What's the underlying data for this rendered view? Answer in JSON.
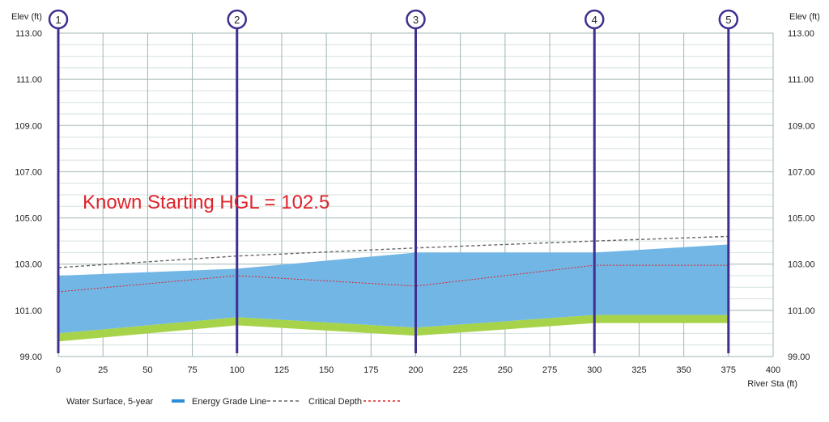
{
  "chart_data": {
    "type": "area",
    "y_axis_label_left": "Elev (ft)",
    "y_axis_label_right": "Elev (ft)",
    "x_axis_label": "River Sta (ft)",
    "ylim": [
      99,
      113
    ],
    "xlim": [
      0,
      400
    ],
    "x_ticks": [
      0,
      25,
      50,
      75,
      100,
      125,
      150,
      175,
      200,
      225,
      250,
      275,
      300,
      325,
      350,
      375,
      400
    ],
    "y_ticks": [
      "99.00",
      "101.00",
      "103.00",
      "105.00",
      "107.00",
      "109.00",
      "111.00",
      "113.00"
    ],
    "grid": true,
    "annotation": "Known Starting HGL = 102.5",
    "stations": [
      {
        "label": "1",
        "x": 0
      },
      {
        "label": "2",
        "x": 100
      },
      {
        "label": "3",
        "x": 200
      },
      {
        "label": "4",
        "x": 300
      },
      {
        "label": "5",
        "x": 375
      }
    ],
    "series": [
      {
        "name": "Water Surface, 5-year",
        "color": "#2e8fd8",
        "x": [
          0,
          100,
          200,
          300,
          375
        ],
        "values": [
          102.5,
          102.8,
          103.5,
          103.5,
          103.85
        ]
      },
      {
        "name": "Energy Grade Line",
        "color": "#666666",
        "x": [
          0,
          100,
          200,
          300,
          375
        ],
        "values": [
          102.85,
          103.35,
          103.7,
          104.0,
          104.2
        ]
      },
      {
        "name": "Critical Depth",
        "color": "#e02020",
        "x": [
          0,
          100,
          200,
          300,
          375
        ],
        "values": [
          101.8,
          102.5,
          102.05,
          102.95,
          102.95
        ]
      },
      {
        "name": "",
        "color": "#a6d34a",
        "x": [
          0,
          100,
          200,
          300,
          375
        ],
        "values": [
          100.0,
          100.7,
          100.25,
          100.8,
          100.8
        ],
        "bottom": [
          99.65,
          100.35,
          99.9,
          100.45,
          100.45
        ]
      }
    ]
  }
}
